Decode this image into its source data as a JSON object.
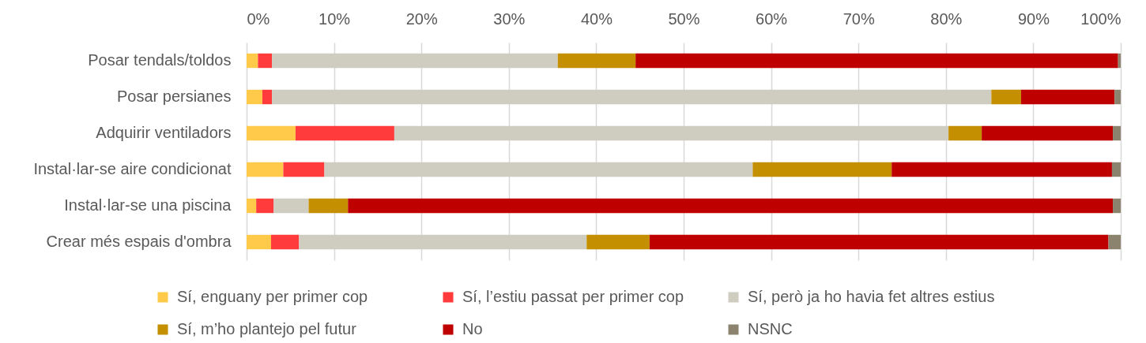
{
  "chart_data": {
    "type": "bar",
    "orientation": "horizontal",
    "stacked": true,
    "categories": [
      "Posar tendals/toldos",
      "Posar persianes",
      "Adquirir ventiladors",
      "Instal·lar-se aire condicionat",
      "Instal·lar-se una piscina",
      "Crear més espais d'ombra"
    ],
    "series": [
      {
        "name": "Sí, enguany per primer cop",
        "color": "#ffc94a",
        "values": [
          1.3,
          1.8,
          5.6,
          4.2,
          1.1,
          2.8
        ]
      },
      {
        "name": "Sí, l’estiu passat per primer cop",
        "color": "#ff3b3b",
        "values": [
          1.6,
          1.1,
          11.3,
          4.7,
          2.0,
          3.2
        ]
      },
      {
        "name": "Sí, però ja ho havia fet altres estius",
        "color": "#cfccc0",
        "values": [
          32.7,
          82.3,
          63.4,
          49.0,
          4.0,
          32.9
        ]
      },
      {
        "name": "Sí, m’ho plantejo pel futur",
        "color": "#c48f00",
        "values": [
          8.9,
          3.4,
          3.8,
          15.9,
          4.5,
          7.2
        ]
      },
      {
        "name": "No",
        "color": "#be0000",
        "values": [
          55.2,
          10.7,
          15.0,
          25.2,
          87.5,
          52.5
        ]
      },
      {
        "name": "NSNC",
        "color": "#8b836d",
        "values": [
          0.3,
          0.7,
          0.9,
          1.0,
          0.9,
          1.4
        ]
      }
    ],
    "xlim": [
      0,
      100
    ],
    "xticks": [
      {
        "value": 0,
        "label": "0%"
      },
      {
        "value": 10,
        "label": "10%"
      },
      {
        "value": 20,
        "label": "20%"
      },
      {
        "value": 30,
        "label": "30%"
      },
      {
        "value": 40,
        "label": "40%"
      },
      {
        "value": 50,
        "label": "50%"
      },
      {
        "value": 60,
        "label": "60%"
      },
      {
        "value": 70,
        "label": "70%"
      },
      {
        "value": 80,
        "label": "80%"
      },
      {
        "value": 90,
        "label": "90%"
      },
      {
        "value": 100,
        "label": "100%"
      }
    ],
    "grid": "x",
    "legend": "bottom"
  }
}
